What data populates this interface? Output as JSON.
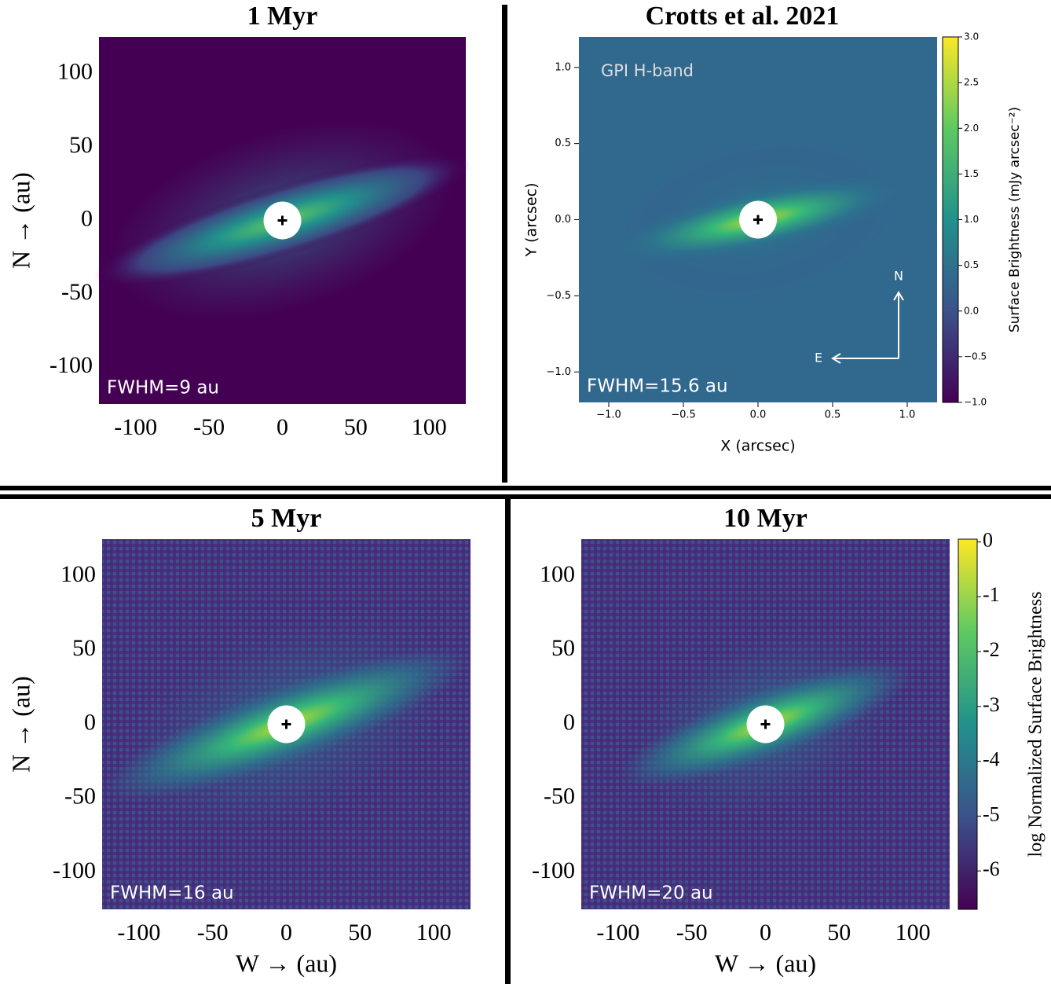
{
  "chart_data": [
    {
      "type": "image",
      "title": "1 Myr",
      "ylabel": "N → (au)",
      "xlim": [
        -125,
        125
      ],
      "ylim": [
        -125,
        125
      ],
      "xticks": [
        -100,
        -50,
        0,
        50,
        100
      ],
      "yticks": [
        -100,
        -50,
        0,
        50,
        100
      ],
      "annotations": [
        "FWHM=9 au"
      ]
    },
    {
      "type": "image",
      "title": "Crotts et al. 2021",
      "xlabel": "X (arcsec)",
      "ylabel": "Y (arcsec)",
      "xlim": [
        -1.2,
        1.2
      ],
      "ylim": [
        -1.2,
        1.2
      ],
      "xticks": [
        {
          "value": -1,
          "label": "−1.0"
        },
        {
          "value": -0.5,
          "label": "−0.5"
        },
        {
          "value": 0,
          "label": "0.0"
        },
        {
          "value": 0.5,
          "label": "0.5"
        },
        {
          "value": 1,
          "label": "1.0"
        }
      ],
      "yticks": [
        {
          "value": -1,
          "label": "−1.0"
        },
        {
          "value": -0.5,
          "label": "−0.5"
        },
        {
          "value": 0,
          "label": "0.0"
        },
        {
          "value": 0.5,
          "label": "0.5"
        },
        {
          "value": 1,
          "label": "1.0"
        }
      ],
      "annotations": [
        "GPI H-band",
        "FWHM=15.6 au",
        "N",
        "E"
      ],
      "colorbar": {
        "label": "Surface Brightness (mJy arcsec⁻²)",
        "lim": [
          -1,
          3
        ],
        "ticks": [
          {
            "value": -1,
            "label": "−1.0"
          },
          {
            "value": -0.5,
            "label": "−0.5"
          },
          {
            "value": 0,
            "label": "0.0"
          },
          {
            "value": 0.5,
            "label": "0.5"
          },
          {
            "value": 1,
            "label": "1.0"
          },
          {
            "value": 1.5,
            "label": "1.5"
          },
          {
            "value": 2,
            "label": "2.0"
          },
          {
            "value": 2.5,
            "label": "2.5"
          },
          {
            "value": 3,
            "label": "3.0"
          }
        ]
      }
    },
    {
      "type": "image",
      "title": "5 Myr",
      "xlabel": "W → (au)",
      "ylabel": "N → (au)",
      "xlim": [
        -125,
        125
      ],
      "ylim": [
        -125,
        125
      ],
      "xticks": [
        -100,
        -50,
        0,
        50,
        100
      ],
      "yticks": [
        -100,
        -50,
        0,
        50,
        100
      ],
      "annotations": [
        "FWHM=16 au"
      ]
    },
    {
      "type": "image",
      "title": "10 Myr",
      "xlabel": "W → (au)",
      "xlim": [
        -125,
        125
      ],
      "ylim": [
        -125,
        125
      ],
      "xticks": [
        -100,
        -50,
        0,
        50,
        100
      ],
      "yticks": [
        -100,
        -50,
        0,
        50,
        100
      ],
      "annotations": [
        "FWHM=20 au"
      ],
      "colorbar": {
        "label": "log Normalized Surface Brightness",
        "lim": [
          -6.7,
          0.05
        ],
        "ticks": [
          -6,
          -5,
          -4,
          -3,
          -2,
          -1,
          0
        ]
      }
    }
  ]
}
